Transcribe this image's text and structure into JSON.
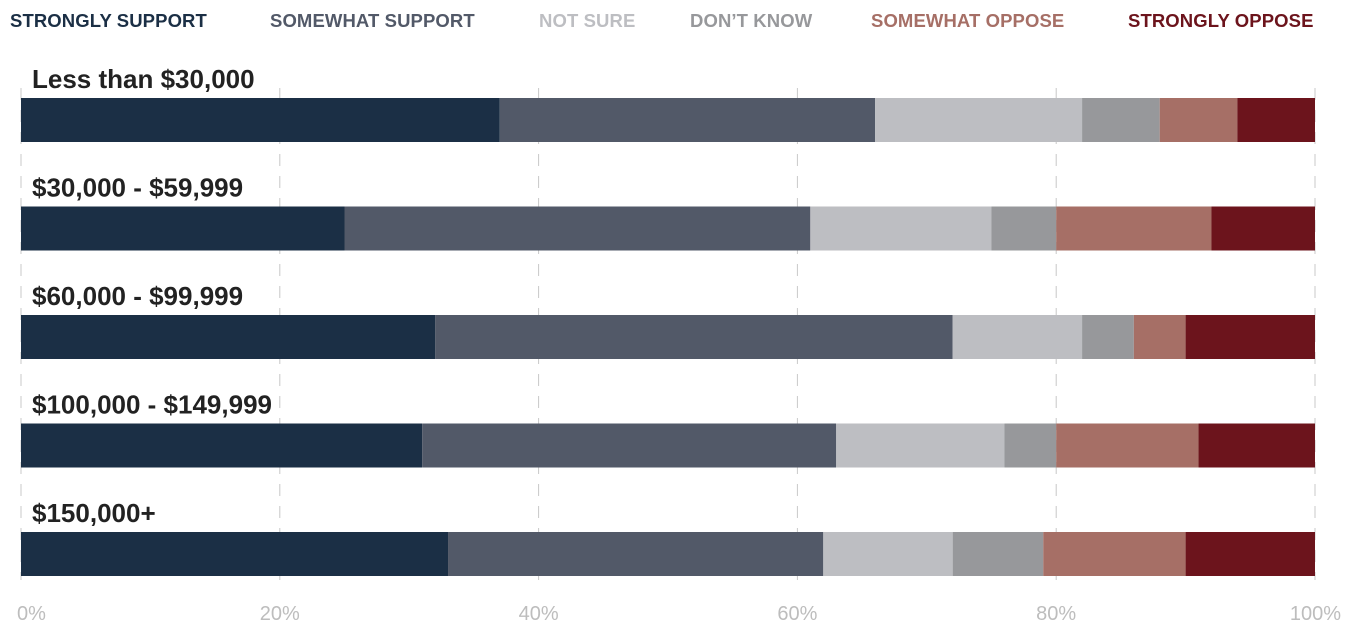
{
  "chart_data": {
    "type": "bar",
    "orientation": "horizontal",
    "stacked": true,
    "title": "",
    "xlabel": "",
    "ylabel": "",
    "xlim": [
      0,
      100
    ],
    "x_ticks": [
      "0%",
      "20%",
      "40%",
      "60%",
      "80%",
      "100%"
    ],
    "grid": "vertical-dashed",
    "legend_position": "top",
    "categories": [
      "Less than $30,000",
      "$30,000 - $59,999",
      "$60,000 - $99,999",
      "$100,000 - $149,999",
      "$150,000+"
    ],
    "series": [
      {
        "name": "STRONGLY SUPPORT",
        "color": "#1b2f45",
        "values": [
          37,
          25,
          32,
          31,
          33
        ]
      },
      {
        "name": "SOMEWHAT SUPPORT",
        "color": "#525968",
        "values": [
          29,
          36,
          40,
          32,
          29
        ]
      },
      {
        "name": "NOT SURE",
        "color": "#bdbec2",
        "values": [
          16,
          14,
          10,
          13,
          10
        ]
      },
      {
        "name": "DON’T KNOW",
        "color": "#97989b",
        "values": [
          6,
          5,
          4,
          4,
          7
        ]
      },
      {
        "name": "SOMEWHAT OPPOSE",
        "color": "#a66f66",
        "values": [
          6,
          12,
          4,
          11,
          11
        ]
      },
      {
        "name": "STRONGLY OPPOSE",
        "color": "#6c141c",
        "values": [
          6,
          8,
          10,
          9,
          10
        ]
      }
    ]
  }
}
